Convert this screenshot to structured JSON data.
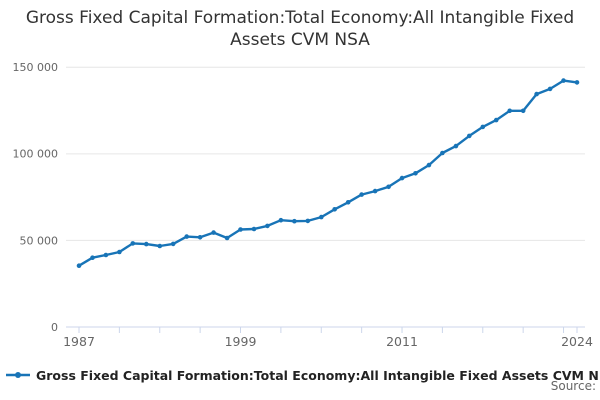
{
  "title": "Gross Fixed Capital Formation:Total Economy:All Intangible Fixed Assets CVM NSA",
  "legend": {
    "label": "Gross Fixed Capital Formation:Total Economy:All Intangible Fixed Assets CVM NSA"
  },
  "source": {
    "label": "Source:"
  },
  "colors": {
    "line": "#1874b7",
    "grid": "#e6e6e6",
    "axis": "#ccd6eb",
    "tick_label": "#666666",
    "title": "#333333"
  },
  "chart_data": {
    "type": "line",
    "title": "Gross Fixed Capital Formation:Total Economy:All Intangible Fixed Assets CVM NSA",
    "xlabel": "",
    "ylabel": "",
    "x": [
      1987,
      1988,
      1989,
      1990,
      1991,
      1992,
      1993,
      1994,
      1995,
      1996,
      1997,
      1998,
      1999,
      2000,
      2001,
      2002,
      2003,
      2004,
      2005,
      2006,
      2007,
      2008,
      2009,
      2010,
      2011,
      2012,
      2013,
      2014,
      2015,
      2016,
      2017,
      2018,
      2019,
      2020,
      2021,
      2022,
      2023,
      2024
    ],
    "values": [
      35400,
      40000,
      41600,
      43300,
      48300,
      47900,
      46800,
      48000,
      52200,
      51800,
      54500,
      51400,
      56300,
      56600,
      58400,
      61700,
      61100,
      61300,
      63500,
      68000,
      72000,
      76500,
      78500,
      81000,
      86000,
      88800,
      93500,
      100500,
      104500,
      110400,
      115600,
      119500,
      124900,
      124900,
      134500,
      137500,
      142300,
      141300
    ],
    "ylim": [
      0,
      150000
    ],
    "y_ticks": [
      {
        "value": 0,
        "label": "0"
      },
      {
        "value": 50000,
        "label": "50 000"
      },
      {
        "value": 100000,
        "label": "100 000"
      },
      {
        "value": 150000,
        "label": "150 000"
      }
    ],
    "x_labeled_ticks": [
      {
        "year": 1987,
        "label": "1987"
      },
      {
        "year": 1999,
        "label": "1999"
      },
      {
        "year": 2011,
        "label": "2011"
      },
      {
        "year": 2024,
        "label": "2024"
      }
    ],
    "x_minor_ticks": [
      1987,
      1990,
      1993,
      1996,
      1999,
      2002,
      2005,
      2008,
      2011,
      2014,
      2017,
      2020,
      2023,
      2024
    ],
    "grid": true,
    "legend_position": "bottom",
    "marker": "circle"
  }
}
